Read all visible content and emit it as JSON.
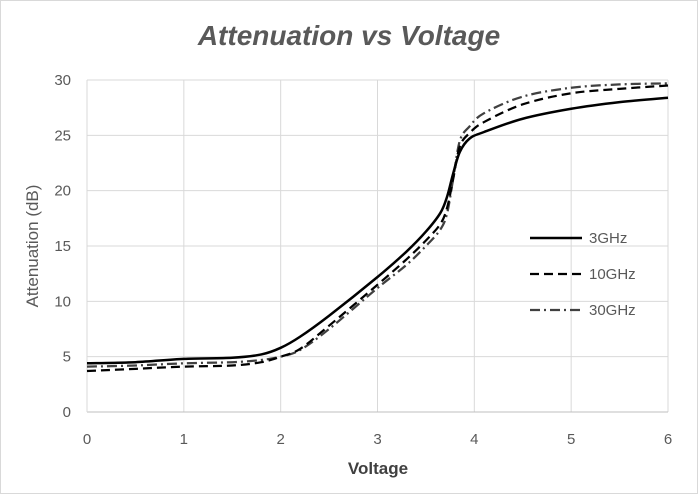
{
  "chart_data": {
    "type": "line",
    "title": "Attenuation vs Voltage",
    "xlabel": "Voltage",
    "ylabel": "Attenuation (dB)",
    "xlim": [
      0,
      6
    ],
    "ylim": [
      0,
      30
    ],
    "xticks": [
      0,
      1,
      2,
      3,
      4,
      5,
      6
    ],
    "yticks": [
      0,
      5,
      10,
      15,
      20,
      25,
      30
    ],
    "grid": true,
    "legend_position": "right",
    "series": [
      {
        "name": "3GHz",
        "style": "solid",
        "color": "#000000",
        "points": [
          [
            0,
            4.4
          ],
          [
            0.5,
            4.5
          ],
          [
            1,
            4.8
          ],
          [
            1.5,
            4.9
          ],
          [
            1.8,
            5.2
          ],
          [
            2,
            5.8
          ],
          [
            2.2,
            6.8
          ],
          [
            2.5,
            8.7
          ],
          [
            3,
            12.2
          ],
          [
            3.3,
            14.5
          ],
          [
            3.5,
            16.3
          ],
          [
            3.65,
            18.0
          ],
          [
            3.72,
            19.5
          ],
          [
            3.78,
            21.5
          ],
          [
            3.85,
            23.5
          ],
          [
            3.95,
            24.7
          ],
          [
            4.1,
            25.3
          ],
          [
            4.5,
            26.5
          ],
          [
            5,
            27.4
          ],
          [
            5.5,
            28.0
          ],
          [
            6,
            28.4
          ]
        ]
      },
      {
        "name": "10GHz",
        "style": "dash",
        "color": "#000000",
        "points": [
          [
            0,
            3.7
          ],
          [
            0.5,
            3.9
          ],
          [
            1,
            4.1
          ],
          [
            1.5,
            4.2
          ],
          [
            1.8,
            4.5
          ],
          [
            2,
            5.0
          ],
          [
            2.2,
            5.7
          ],
          [
            2.5,
            7.8
          ],
          [
            3,
            11.5
          ],
          [
            3.3,
            13.8
          ],
          [
            3.5,
            15.5
          ],
          [
            3.65,
            17.0
          ],
          [
            3.72,
            18.5
          ],
          [
            3.78,
            21.0
          ],
          [
            3.85,
            24.0
          ],
          [
            3.95,
            25.2
          ],
          [
            4.1,
            26.2
          ],
          [
            4.5,
            27.8
          ],
          [
            5,
            28.8
          ],
          [
            5.5,
            29.2
          ],
          [
            6,
            29.5
          ]
        ]
      },
      {
        "name": "30GHz",
        "style": "dashdot",
        "color": "#404040",
        "points": [
          [
            0,
            4.1
          ],
          [
            0.5,
            4.2
          ],
          [
            1,
            4.4
          ],
          [
            1.5,
            4.5
          ],
          [
            1.8,
            4.7
          ],
          [
            2,
            5.0
          ],
          [
            2.2,
            5.6
          ],
          [
            2.5,
            7.5
          ],
          [
            3,
            11.2
          ],
          [
            3.3,
            13.3
          ],
          [
            3.5,
            15.0
          ],
          [
            3.65,
            16.5
          ],
          [
            3.72,
            18.0
          ],
          [
            3.78,
            21.0
          ],
          [
            3.85,
            24.5
          ],
          [
            3.95,
            25.8
          ],
          [
            4.1,
            27.0
          ],
          [
            4.5,
            28.5
          ],
          [
            5,
            29.3
          ],
          [
            5.5,
            29.6
          ],
          [
            6,
            29.7
          ]
        ]
      }
    ]
  }
}
